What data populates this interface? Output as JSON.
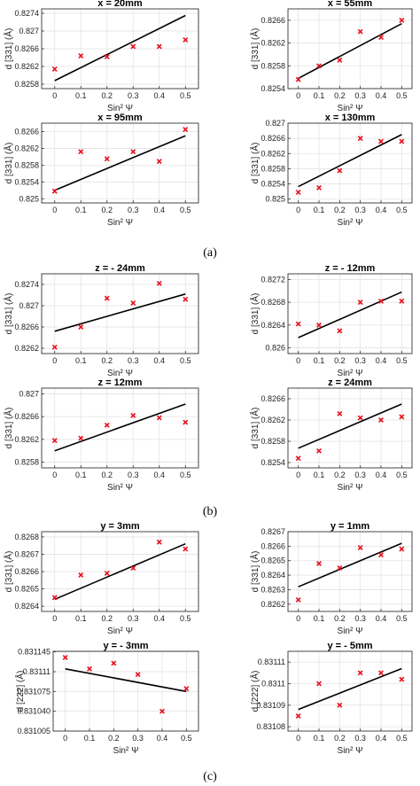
{
  "figure_labels": [
    "(a)",
    "(b)",
    "(c)"
  ],
  "chart_data": [
    {
      "type": "scatter",
      "title": "x = 20mm",
      "xlabel": "Sin² Ψ",
      "ylabel": "d [331] (Å)",
      "xlim": [
        -0.05,
        0.55
      ],
      "ylim": [
        0.8257,
        0.8275
      ],
      "xticks": [
        "0",
        "0.1",
        "0.2",
        "0.3",
        "0.4",
        "0.5"
      ],
      "yticks": [
        "0.8258",
        "0.8262",
        "0.8266",
        "0.827",
        "0.8274"
      ],
      "x": [
        0,
        0.1,
        0.2,
        0.3,
        0.4,
        0.5
      ],
      "y": [
        0.82614,
        0.82644,
        0.82642,
        0.82665,
        0.82665,
        0.8268
      ],
      "fit": [
        [
          0,
          0.82588
        ],
        [
          0.5,
          0.82735
        ]
      ],
      "grid": true
    },
    {
      "type": "scatter",
      "title": "x = 55mm",
      "xlabel": "Sin² Ψ",
      "ylabel": "d [331] (Å)",
      "xlim": [
        -0.05,
        0.55
      ],
      "ylim": [
        0.8254,
        0.8268
      ],
      "xticks": [
        "0",
        "0.1",
        "0.2",
        "0.3",
        "0.4",
        "0.5"
      ],
      "yticks": [
        "0.8254",
        "0.8258",
        "0.8262",
        "0.8266"
      ],
      "x": [
        0,
        0.1,
        0.2,
        0.3,
        0.4,
        0.5
      ],
      "y": [
        0.82556,
        0.8258,
        0.8259,
        0.8264,
        0.8263,
        0.8266
      ],
      "fit": [
        [
          0,
          0.82558
        ],
        [
          0.5,
          0.82654
        ]
      ],
      "grid": true
    },
    {
      "type": "scatter",
      "title": "x = 95mm",
      "xlabel": "Sin² Ψ",
      "ylabel": "d [331] (Å)",
      "xlim": [
        -0.05,
        0.55
      ],
      "ylim": [
        0.8249,
        0.8268
      ],
      "xticks": [
        "0",
        "0.1",
        "0.2",
        "0.3",
        "0.4",
        "0.5"
      ],
      "yticks": [
        "0.825",
        "0.8254",
        "0.8258",
        "0.8262",
        "0.8266"
      ],
      "x": [
        0,
        0.1,
        0.2,
        0.3,
        0.4,
        0.5
      ],
      "y": [
        0.82518,
        0.82612,
        0.82595,
        0.82612,
        0.82589,
        0.82665
      ],
      "fit": [
        [
          0,
          0.8252
        ],
        [
          0.5,
          0.8265
        ]
      ],
      "grid": true
    },
    {
      "type": "scatter",
      "title": "x = 130mm",
      "xlabel": "Sin² Ψ",
      "ylabel": "d [331] (Å)",
      "xlim": [
        -0.05,
        0.55
      ],
      "ylim": [
        0.8249,
        0.827
      ],
      "xticks": [
        "0",
        "0.1",
        "0.2",
        "0.3",
        "0.4",
        "0.5"
      ],
      "yticks": [
        "0.825",
        "0.8254",
        "0.8258",
        "0.8262",
        "0.8266",
        "0.827"
      ],
      "x": [
        0,
        0.1,
        0.2,
        0.3,
        0.4,
        0.5
      ],
      "y": [
        0.82518,
        0.8253,
        0.82575,
        0.8266,
        0.82652,
        0.82652
      ],
      "fit": [
        [
          0,
          0.82533
        ],
        [
          0.5,
          0.8267
        ]
      ],
      "grid": true
    },
    {
      "type": "scatter",
      "title": "z = - 24mm",
      "xlabel": "Sin² Ψ",
      "ylabel": "d [331] (Å)",
      "xlim": [
        -0.05,
        0.55
      ],
      "ylim": [
        0.8261,
        0.8276
      ],
      "xticks": [
        "0",
        "0.1",
        "0.2",
        "0.3",
        "0.4",
        "0.5"
      ],
      "yticks": [
        "0.8262",
        "0.8266",
        "0.827",
        "0.8274"
      ],
      "x": [
        0,
        0.1,
        0.2,
        0.3,
        0.4,
        0.5
      ],
      "y": [
        0.82622,
        0.8266,
        0.82714,
        0.82705,
        0.82742,
        0.82712
      ],
      "fit": [
        [
          0,
          0.82652
        ],
        [
          0.5,
          0.82722
        ]
      ],
      "grid": true
    },
    {
      "type": "scatter",
      "title": "z = - 12mm",
      "xlabel": "Sin² Ψ",
      "ylabel": "d [331] (Å)",
      "xlim": [
        -0.05,
        0.55
      ],
      "ylim": [
        0.8259,
        0.8273
      ],
      "xticks": [
        "0",
        "0.1",
        "0.2",
        "0.3",
        "0.4",
        "0.5"
      ],
      "yticks": [
        "0.826",
        "0.8264",
        "0.8268",
        "0.8272"
      ],
      "x": [
        0,
        0.1,
        0.2,
        0.3,
        0.4,
        0.5
      ],
      "y": [
        0.82642,
        0.8264,
        0.8263,
        0.8268,
        0.82682,
        0.82682
      ],
      "fit": [
        [
          0,
          0.82618
        ],
        [
          0.5,
          0.82698
        ]
      ],
      "grid": true
    },
    {
      "type": "scatter",
      "title": "z = 12mm",
      "xlabel": "Sin² Ψ",
      "ylabel": "d [331] (Å)",
      "xlim": [
        -0.05,
        0.55
      ],
      "ylim": [
        0.8257,
        0.8271
      ],
      "xticks": [
        "0",
        "0.1",
        "0.2",
        "0.3",
        "0.4",
        "0.5"
      ],
      "yticks": [
        "0.8258",
        "0.8262",
        "0.8266",
        "0.827"
      ],
      "x": [
        0,
        0.1,
        0.2,
        0.3,
        0.4,
        0.5
      ],
      "y": [
        0.82618,
        0.82622,
        0.82645,
        0.82662,
        0.82658,
        0.8265
      ],
      "fit": [
        [
          0,
          0.826
        ],
        [
          0.5,
          0.82682
        ]
      ],
      "grid": true
    },
    {
      "type": "scatter",
      "title": "z = 24mm",
      "xlabel": "Sin² Ψ",
      "ylabel": "d [331] (Å)",
      "xlim": [
        -0.05,
        0.55
      ],
      "ylim": [
        0.8253,
        0.8268
      ],
      "xticks": [
        "0",
        "0.1",
        "0.2",
        "0.3",
        "0.4",
        "0.5"
      ],
      "yticks": [
        "0.8254",
        "0.8258",
        "0.8262",
        "0.8266"
      ],
      "x": [
        0,
        0.1,
        0.2,
        0.3,
        0.4,
        0.5
      ],
      "y": [
        0.82548,
        0.82562,
        0.82632,
        0.82624,
        0.8262,
        0.82626
      ],
      "fit": [
        [
          0,
          0.82567
        ],
        [
          0.5,
          0.8265
        ]
      ],
      "grid": true
    },
    {
      "type": "scatter",
      "title": "y = 3mm",
      "xlabel": "Sin² Ψ",
      "ylabel": "d [331] (Å)",
      "xlim": [
        -0.05,
        0.55
      ],
      "ylim": [
        0.82637,
        0.82683
      ],
      "xticks": [
        "0",
        "0.1",
        "0.2",
        "0.3",
        "0.4",
        "0.5"
      ],
      "yticks": [
        "0.8264",
        "0.8265",
        "0.8266",
        "0.8267",
        "0.8268"
      ],
      "x": [
        0,
        0.1,
        0.2,
        0.3,
        0.4,
        0.5
      ],
      "y": [
        0.82645,
        0.82658,
        0.82659,
        0.82662,
        0.82677,
        0.82673
      ],
      "fit": [
        [
          0,
          0.82644
        ],
        [
          0.5,
          0.82676
        ]
      ],
      "grid": true
    },
    {
      "type": "scatter",
      "title": "y = 1mm",
      "xlabel": "Sin² Ψ",
      "ylabel": "d [331] (Å)",
      "xlim": [
        -0.05,
        0.55
      ],
      "ylim": [
        0.82615,
        0.8267
      ],
      "xticks": [
        "0",
        "0.1",
        "0.2",
        "0.3",
        "0.4",
        "0.5"
      ],
      "yticks": [
        "0.8262",
        "0.8263",
        "0.8264",
        "0.8265",
        "0.8266",
        "0.8267"
      ],
      "x": [
        0,
        0.1,
        0.2,
        0.3,
        0.4,
        0.5
      ],
      "y": [
        0.82623,
        0.82648,
        0.82645,
        0.82659,
        0.82654,
        0.82658
      ],
      "fit": [
        [
          0,
          0.82632
        ],
        [
          0.5,
          0.82662
        ]
      ],
      "grid": true
    },
    {
      "type": "scatter",
      "title": "y = - 3mm",
      "xlabel": "Sin² Ψ",
      "ylabel": "d [222] (Å)",
      "xlim": [
        -0.05,
        0.55
      ],
      "ylim": [
        0.831005,
        0.831146
      ],
      "xticks": [
        "0",
        "0.1",
        "0.2",
        "0.3",
        "0.4",
        "0.5"
      ],
      "yticks": [
        "0.831005",
        "0.831040",
        "0.831075",
        "0.83111",
        "0.831145"
      ],
      "x": [
        0,
        0.1,
        0.2,
        0.3,
        0.4,
        0.5
      ],
      "y": [
        0.831135,
        0.831115,
        0.831125,
        0.831105,
        0.83104,
        0.83108
      ],
      "fit": [
        [
          0,
          0.831115
        ],
        [
          0.5,
          0.831075
        ]
      ],
      "grid": true
    },
    {
      "type": "scatter",
      "title": "y = - 5mm",
      "xlabel": "Sin² Ψ",
      "ylabel": "d [222] (Å)",
      "xlim": [
        -0.05,
        0.55
      ],
      "ylim": [
        0.831078,
        0.831115
      ],
      "xticks": [
        "0",
        "0.1",
        "0.2",
        "0.3",
        "0.4",
        "0.5"
      ],
      "yticks": [
        "0.83108",
        "0.83109",
        "0.8311",
        "0.83111"
      ],
      "x": [
        0,
        0.1,
        0.2,
        0.3,
        0.4,
        0.5
      ],
      "y": [
        0.831085,
        0.8311,
        0.83109,
        0.831105,
        0.831105,
        0.831102
      ],
      "fit": [
        [
          0,
          0.831088
        ],
        [
          0.5,
          0.831107
        ]
      ],
      "grid": true
    }
  ]
}
